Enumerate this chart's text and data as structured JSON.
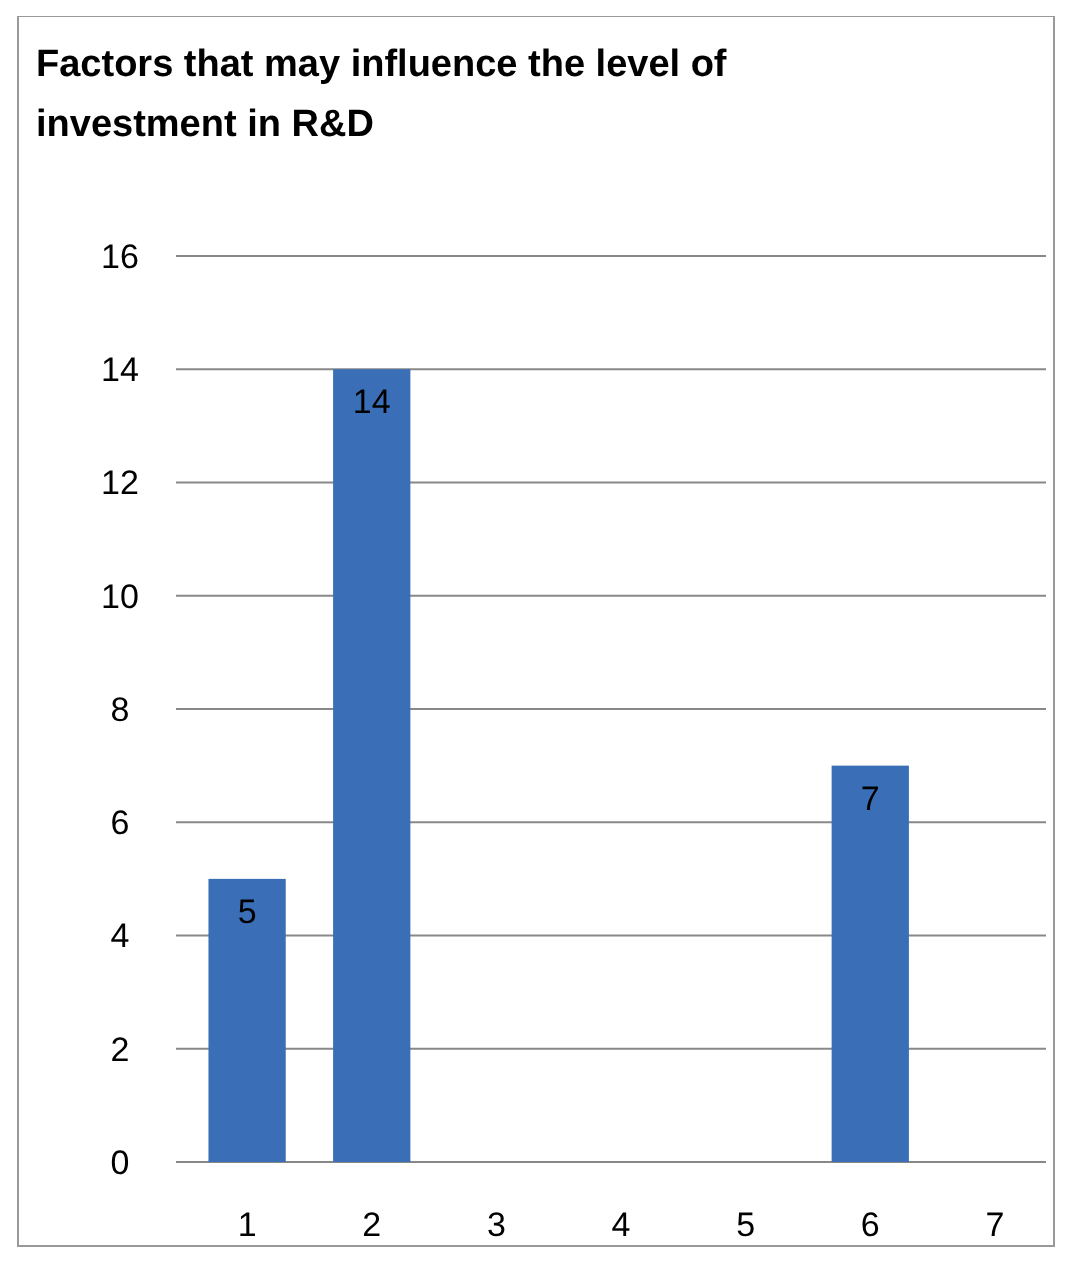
{
  "chart_data": {
    "type": "bar",
    "title": "Factors that may influence the level of investment in R&D",
    "categories": [
      "1",
      "2",
      "3",
      "4",
      "5",
      "6",
      "7"
    ],
    "values": [
      5,
      14,
      0,
      0,
      0,
      7,
      0
    ],
    "value_labels": [
      "5",
      "14",
      null,
      null,
      null,
      "7",
      null
    ],
    "color": "#3a6fb8",
    "ylim": [
      0,
      16
    ],
    "yticks": [
      0,
      2,
      4,
      6,
      8,
      10,
      12,
      14,
      16
    ],
    "grid": "y"
  }
}
